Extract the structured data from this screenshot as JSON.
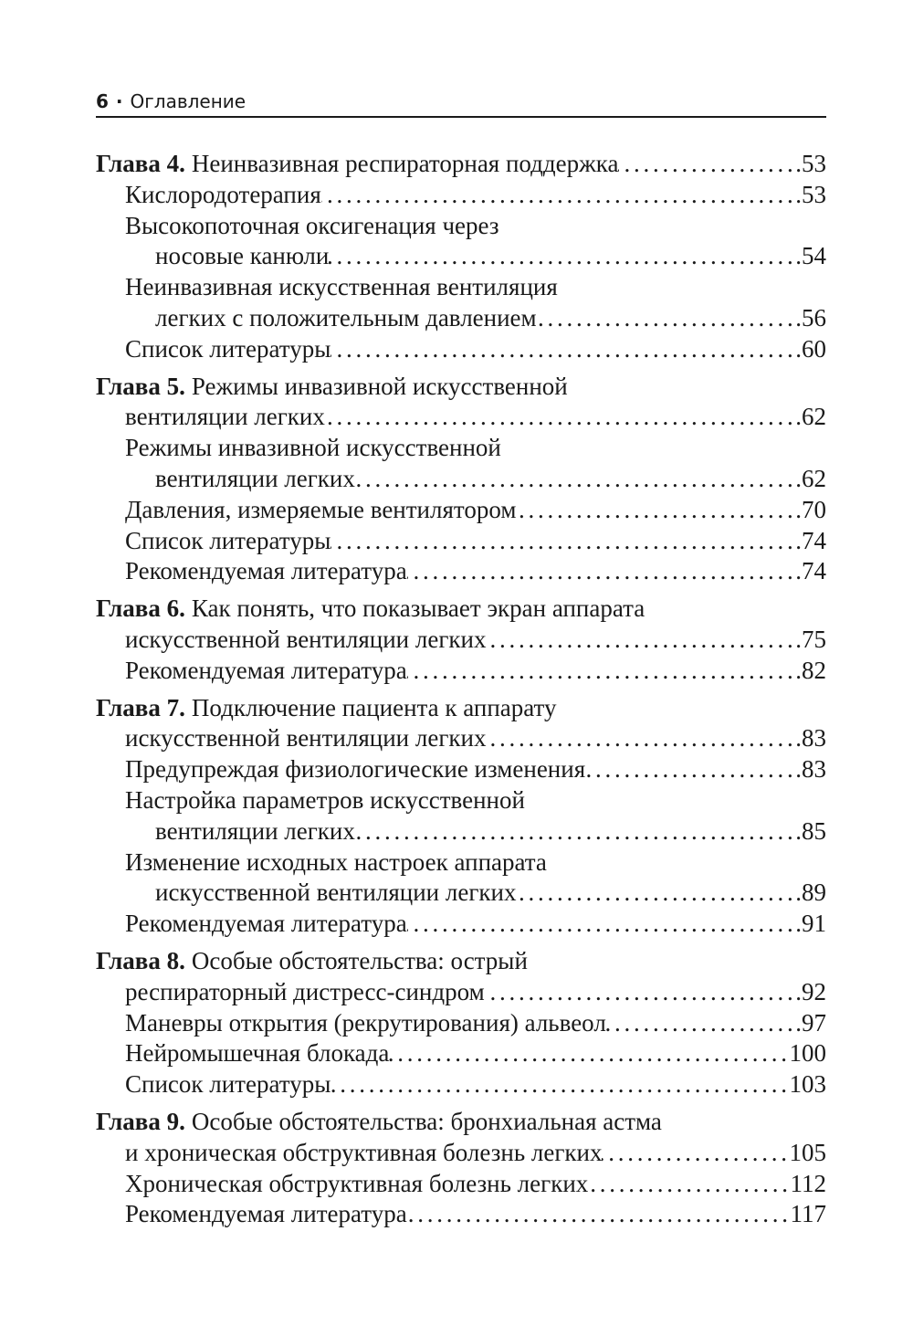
{
  "header": {
    "page_number": "6",
    "separator": "·",
    "title": "Оглавление"
  },
  "chapters": [
    {
      "label": "Глава 4.",
      "lines": [
        "Неинвазивная респираторная поддержка"
      ],
      "page": ".53",
      "entries": [
        {
          "lines": [
            "Кислородотерапия"
          ],
          "page": ".53"
        },
        {
          "lines": [
            "Высокопоточная оксигенация через",
            "носовые канюли"
          ],
          "page": ".54"
        },
        {
          "lines": [
            "Неинвазивная искусственная вентиляция",
            "легких с положительным давлением"
          ],
          "page": ".56"
        },
        {
          "lines": [
            "Список литературы"
          ],
          "page": ".60"
        }
      ]
    },
    {
      "label": "Глава 5.",
      "lines": [
        "Режимы инвазивной искусственной",
        "вентиляции легких"
      ],
      "page": ".62",
      "entries": [
        {
          "lines": [
            "Режимы инвазивной искусственной",
            "вентиляции легких"
          ],
          "page": ".62"
        },
        {
          "lines": [
            "Давления, измеряемые вентилятором"
          ],
          "page": ".70"
        },
        {
          "lines": [
            "Список литературы"
          ],
          "page": ".74"
        },
        {
          "lines": [
            "Рекомендуемая литература"
          ],
          "page": ".74"
        }
      ]
    },
    {
      "label": "Глава 6.",
      "lines": [
        "Как понять, что показывает экран аппарата",
        "искусственной вентиляции легких"
      ],
      "page": ".75",
      "entries": [
        {
          "lines": [
            "Рекомендуемая литература"
          ],
          "page": ".82"
        }
      ]
    },
    {
      "label": "Глава 7.",
      "lines": [
        "Подключение пациента к аппарату",
        "искусственной вентиляции легких"
      ],
      "page": ".83",
      "entries": [
        {
          "lines": [
            "Предупреждая физиологические изменения"
          ],
          "page": ".83"
        },
        {
          "lines": [
            "Настройка параметров искусственной",
            "вентиляции легких"
          ],
          "page": ".85"
        },
        {
          "lines": [
            "Изменение исходных настроек аппарата",
            "искусственной вентиляции легких"
          ],
          "page": ".89"
        },
        {
          "lines": [
            "Рекомендуемая литература"
          ],
          "page": ".91"
        }
      ]
    },
    {
      "label": "Глава 8.",
      "lines": [
        "Особые обстоятельства: острый",
        "респираторный дистресс-синдром"
      ],
      "page": ".92",
      "entries": [
        {
          "lines": [
            "Маневры открытия (рекрутирования) альвеол"
          ],
          "page": ".97"
        },
        {
          "lines": [
            "Нейромышечная блокада"
          ],
          "page": "100"
        },
        {
          "lines": [
            "Список литературы"
          ],
          "page": "103"
        }
      ]
    },
    {
      "label": "Глава 9.",
      "lines": [
        "Особые обстоятельства: бронхиальная астма",
        "и хроническая обструктивная болезнь легких"
      ],
      "page": "105",
      "entries": [
        {
          "lines": [
            "Хроническая обструктивная болезнь легких"
          ],
          "page": "112"
        },
        {
          "lines": [
            "Рекомендуемая литература"
          ],
          "page": "117"
        }
      ]
    }
  ]
}
